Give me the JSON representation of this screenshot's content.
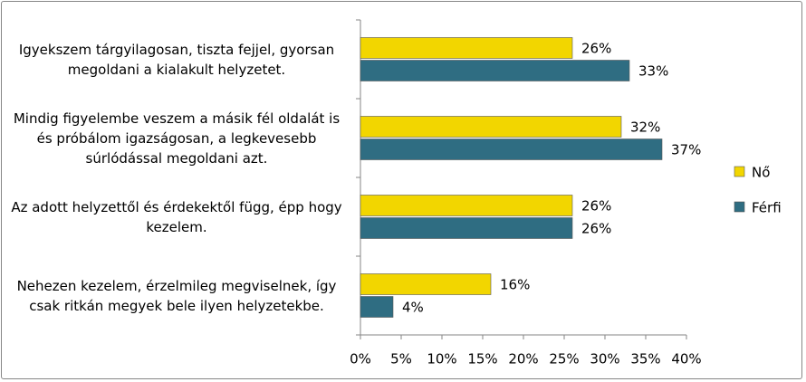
{
  "chart_data": {
    "type": "bar",
    "orientation": "horizontal",
    "categories": [
      "Igyekszem tárgyilagosan, tiszta fejjel, gyorsan megoldani a kialakult helyzetet.",
      "Mindig figyelembe veszem a másik fél oldalát is és próbálom igazságosan, a legkevesebb súrlódással megoldani azt.",
      "Az adott helyzettől és érdekektől függ, épp hogy kezelem.",
      "Nehezen kezelem, érzelmileg megviselnek, így csak ritkán megyek bele ilyen helyzetekbe."
    ],
    "series": [
      {
        "name": "Nő",
        "color": "#f2d600",
        "values": [
          26,
          32,
          26,
          16
        ],
        "value_labels": [
          "26%",
          "32%",
          "26%",
          "16%"
        ]
      },
      {
        "name": "Férfi",
        "color": "#2f6d82",
        "values": [
          33,
          37,
          26,
          4
        ],
        "value_labels": [
          "33%",
          "37%",
          "26%",
          "4%"
        ]
      }
    ],
    "xlim": [
      0,
      40
    ],
    "xticks": [
      {
        "value": 0,
        "label": "0%"
      },
      {
        "value": 5,
        "label": "5%"
      },
      {
        "value": 10,
        "label": "10%"
      },
      {
        "value": 15,
        "label": "15%"
      },
      {
        "value": 20,
        "label": "20%"
      },
      {
        "value": 25,
        "label": "25%"
      },
      {
        "value": 30,
        "label": "30%"
      },
      {
        "value": 35,
        "label": "35%"
      },
      {
        "value": 40,
        "label": "40%"
      }
    ],
    "grid": false,
    "legend": "right"
  }
}
